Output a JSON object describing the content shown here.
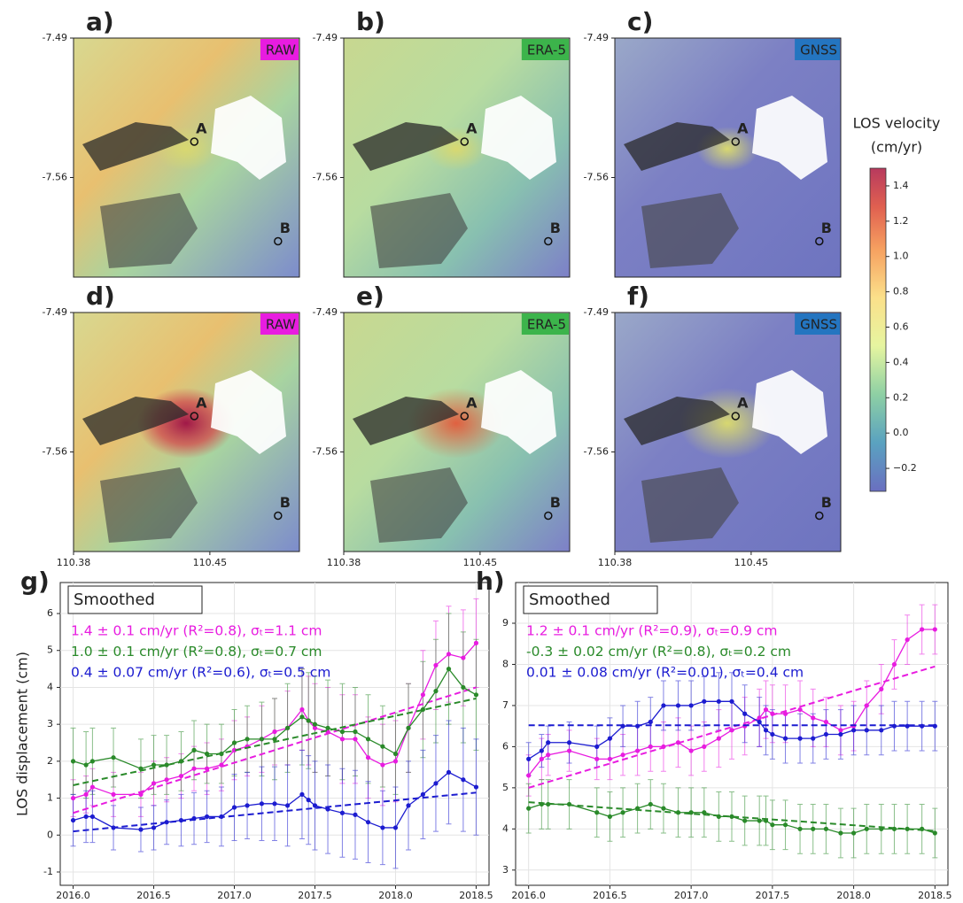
{
  "maps": {
    "panels": [
      {
        "label": "a)",
        "badge": "RAW",
        "badge_color": "#e81ce0"
      },
      {
        "label": "b)",
        "badge": "ERA-5",
        "badge_color": "#3cb44b"
      },
      {
        "label": "c)",
        "badge": "GNSS",
        "badge_color": "#2475c0"
      },
      {
        "label": "d)",
        "badge": "RAW",
        "badge_color": "#e81ce0"
      },
      {
        "label": "e)",
        "badge": "ERA-5",
        "badge_color": "#3cb44b"
      },
      {
        "label": "f)",
        "badge": "GNSS",
        "badge_color": "#2475c0"
      }
    ],
    "xlim": [
      110.38,
      110.496
    ],
    "ylim": [
      -7.61,
      -7.49
    ],
    "xticks": [
      110.38,
      110.45
    ],
    "yticks": [
      -7.49,
      -7.56
    ],
    "points": [
      "A",
      "B"
    ],
    "colorbar": {
      "title": [
        "LOS velocity",
        "(cm/yr)"
      ],
      "lim": [
        -0.33,
        1.5
      ],
      "ticks": [
        {
          "value": -0.2,
          "label": "−0.2"
        },
        {
          "value": 0,
          "label": "0.0"
        },
        0.2,
        0.4,
        0.6,
        0.8,
        {
          "value": 1,
          "label": "1.0"
        },
        1.2,
        1.4
      ]
    }
  },
  "chart_data": [
    {
      "type": "line",
      "panel_label": "g)",
      "box_label": "Smoothed",
      "ylabel": "LOS displacement (cm)",
      "xlim": [
        2015.92,
        2018.58
      ],
      "ylim": [
        -1.36,
        6.84
      ],
      "grid": true,
      "xticks": [
        {
          "value": 2016,
          "label": "2016.0"
        },
        2016.5,
        {
          "value": 2017,
          "label": "2017.0"
        },
        2017.5,
        {
          "value": 2018,
          "label": "2018.0"
        },
        2018.5
      ],
      "yticks": [
        -1,
        0,
        1,
        2,
        3,
        4,
        5,
        6
      ],
      "x": [
        2016.0,
        2016.08,
        2016.12,
        2016.25,
        2016.42,
        2016.5,
        2016.58,
        2016.67,
        2016.75,
        2016.83,
        2016.92,
        2017.0,
        2017.08,
        2017.17,
        2017.25,
        2017.33,
        2017.42,
        2017.46,
        2017.5,
        2017.58,
        2017.67,
        2017.75,
        2017.83,
        2017.92,
        2018.0,
        2018.08,
        2018.17,
        2018.25,
        2018.33,
        2018.42,
        2018.5
      ],
      "series": [
        {
          "name": "1.4 ± 0.1 cm/yr (R²=0.8), σₜ=1.1 cm",
          "color": "#e81ce0",
          "values": [
            1.0,
            1.1,
            1.3,
            1.1,
            1.1,
            1.4,
            1.5,
            1.6,
            1.8,
            1.8,
            1.9,
            2.3,
            2.4,
            2.6,
            2.8,
            2.9,
            3.4,
            3.1,
            2.9,
            2.8,
            2.6,
            2.6,
            2.1,
            1.9,
            2.0,
            2.9,
            3.8,
            4.6,
            4.9,
            4.8,
            5.2
          ],
          "errors": [
            0.5,
            0.5,
            0.5,
            0.6,
            0.6,
            0.6,
            0.6,
            0.6,
            0.6,
            0.7,
            0.7,
            0.8,
            0.8,
            0.9,
            0.9,
            1.0,
            1.1,
            1.2,
            1.2,
            1.2,
            1.2,
            1.2,
            1.1,
            1.1,
            1.1,
            1.2,
            1.2,
            1.2,
            1.3,
            1.3,
            1.2
          ],
          "trend": [
            0.6,
            4.0
          ]
        },
        {
          "name": "1.0 ± 0.1 cm/yr (R²=0.8), σₜ=0.7 cm",
          "color": "#2a8a2a",
          "values": [
            2.0,
            1.9,
            2.0,
            2.1,
            1.8,
            1.9,
            1.9,
            2.0,
            2.3,
            2.2,
            2.2,
            2.5,
            2.6,
            2.6,
            2.6,
            2.9,
            3.2,
            3.1,
            3.0,
            2.9,
            2.8,
            2.8,
            2.6,
            2.4,
            2.2,
            2.9,
            3.4,
            3.9,
            4.5,
            4.0,
            3.8
          ],
          "errors": [
            0.9,
            0.9,
            0.9,
            0.8,
            0.8,
            0.8,
            0.8,
            0.8,
            0.8,
            0.8,
            0.8,
            0.9,
            0.9,
            1.0,
            1.1,
            1.2,
            1.3,
            1.3,
            1.3,
            1.3,
            1.3,
            1.2,
            1.2,
            1.1,
            1.1,
            1.2,
            1.3,
            1.4,
            1.5,
            1.5,
            1.5
          ],
          "trend": [
            1.35,
            3.7
          ]
        },
        {
          "name": "0.4 ± 0.07 cm/yr (R²=0.6), σₜ=0.5 cm",
          "color": "#1c1cd0",
          "values": [
            0.4,
            0.5,
            0.5,
            0.2,
            0.15,
            0.2,
            0.35,
            0.4,
            0.45,
            0.5,
            0.5,
            0.75,
            0.8,
            0.85,
            0.85,
            0.8,
            1.1,
            0.95,
            0.8,
            0.7,
            0.6,
            0.55,
            0.35,
            0.2,
            0.2,
            0.8,
            1.1,
            1.4,
            1.7,
            1.5,
            1.3
          ],
          "errors": [
            0.7,
            0.7,
            0.7,
            0.6,
            0.6,
            0.6,
            0.6,
            0.7,
            0.7,
            0.7,
            0.8,
            0.9,
            0.9,
            1.0,
            1.0,
            1.1,
            1.2,
            1.2,
            1.2,
            1.2,
            1.2,
            1.2,
            1.1,
            1.0,
            1.1,
            1.2,
            1.2,
            1.3,
            1.4,
            1.4,
            1.3
          ],
          "trend": [
            0.1,
            1.15
          ]
        }
      ]
    },
    {
      "type": "line",
      "panel_label": "h)",
      "box_label": "Smoothed",
      "xlim": [
        2015.92,
        2018.58
      ],
      "ylim": [
        2.63,
        9.99
      ],
      "grid": true,
      "xticks": [
        {
          "value": 2016,
          "label": "2016.0"
        },
        2016.5,
        {
          "value": 2017,
          "label": "2017.0"
        },
        2017.5,
        {
          "value": 2018,
          "label": "2018.0"
        },
        2018.5
      ],
      "yticks": [
        3,
        4,
        5,
        6,
        7,
        8,
        9
      ],
      "x": [
        2016.0,
        2016.08,
        2016.12,
        2016.25,
        2016.42,
        2016.5,
        2016.58,
        2016.67,
        2016.75,
        2016.83,
        2016.92,
        2017.0,
        2017.08,
        2017.17,
        2017.25,
        2017.33,
        2017.42,
        2017.46,
        2017.5,
        2017.58,
        2017.67,
        2017.75,
        2017.83,
        2017.92,
        2018.0,
        2018.08,
        2018.17,
        2018.25,
        2018.33,
        2018.42,
        2018.5
      ],
      "series": [
        {
          "name": "1.2 ± 0.1 cm/yr (R²=0.9), σₜ=0.9 cm",
          "color": "#e81ce0",
          "values": [
            5.3,
            5.7,
            5.8,
            5.9,
            5.7,
            5.7,
            5.8,
            5.9,
            6.0,
            6.0,
            6.1,
            5.9,
            6.0,
            6.2,
            6.4,
            6.5,
            6.7,
            6.9,
            6.8,
            6.8,
            6.9,
            6.7,
            6.6,
            6.4,
            6.5,
            7.0,
            7.4,
            8.0,
            8.6,
            8.85,
            8.85
          ],
          "errors": [
            0.5,
            0.5,
            0.5,
            0.5,
            0.5,
            0.5,
            0.5,
            0.6,
            0.6,
            0.6,
            0.6,
            0.6,
            0.6,
            0.7,
            0.7,
            0.7,
            0.7,
            0.7,
            0.7,
            0.7,
            0.7,
            0.7,
            0.6,
            0.6,
            0.6,
            0.6,
            0.6,
            0.6,
            0.6,
            0.6,
            0.6
          ],
          "trend": [
            5.0,
            7.95
          ]
        },
        {
          "name": "-0.3 ± 0.02 cm/yr (R²=0.8), σₜ=0.2 cm",
          "color": "#2a8a2a",
          "values": [
            4.5,
            4.6,
            4.6,
            4.6,
            4.4,
            4.3,
            4.4,
            4.5,
            4.6,
            4.5,
            4.4,
            4.4,
            4.4,
            4.3,
            4.3,
            4.2,
            4.2,
            4.2,
            4.1,
            4.1,
            4.0,
            4.0,
            4.0,
            3.9,
            3.9,
            4.0,
            4.0,
            4.0,
            4.0,
            4.0,
            3.9
          ],
          "errors": [
            0.6,
            0.6,
            0.6,
            0.6,
            0.6,
            0.6,
            0.6,
            0.6,
            0.6,
            0.6,
            0.6,
            0.6,
            0.6,
            0.6,
            0.6,
            0.6,
            0.6,
            0.6,
            0.6,
            0.6,
            0.6,
            0.6,
            0.6,
            0.6,
            0.6,
            0.6,
            0.6,
            0.6,
            0.6,
            0.6,
            0.6
          ],
          "trend": [
            4.65,
            3.95
          ]
        },
        {
          "name": "0.01 ± 0.08 cm/yr (R²=0.01), σₜ=0.4 cm",
          "color": "#1c1cd0",
          "values": [
            5.7,
            5.9,
            6.1,
            6.1,
            6.0,
            6.2,
            6.5,
            6.5,
            6.6,
            7.0,
            7.0,
            7.0,
            7.1,
            7.1,
            7.1,
            6.8,
            6.6,
            6.4,
            6.3,
            6.2,
            6.2,
            6.2,
            6.3,
            6.3,
            6.4,
            6.4,
            6.4,
            6.5,
            6.5,
            6.5,
            6.5
          ],
          "errors": [
            0.4,
            0.4,
            0.4,
            0.5,
            0.5,
            0.5,
            0.5,
            0.6,
            0.6,
            0.6,
            0.6,
            0.6,
            0.6,
            0.7,
            0.7,
            0.7,
            0.6,
            0.6,
            0.6,
            0.6,
            0.6,
            0.6,
            0.6,
            0.6,
            0.6,
            0.6,
            0.6,
            0.6,
            0.6,
            0.6,
            0.6
          ],
          "trend": [
            6.52,
            6.52
          ]
        }
      ]
    }
  ]
}
